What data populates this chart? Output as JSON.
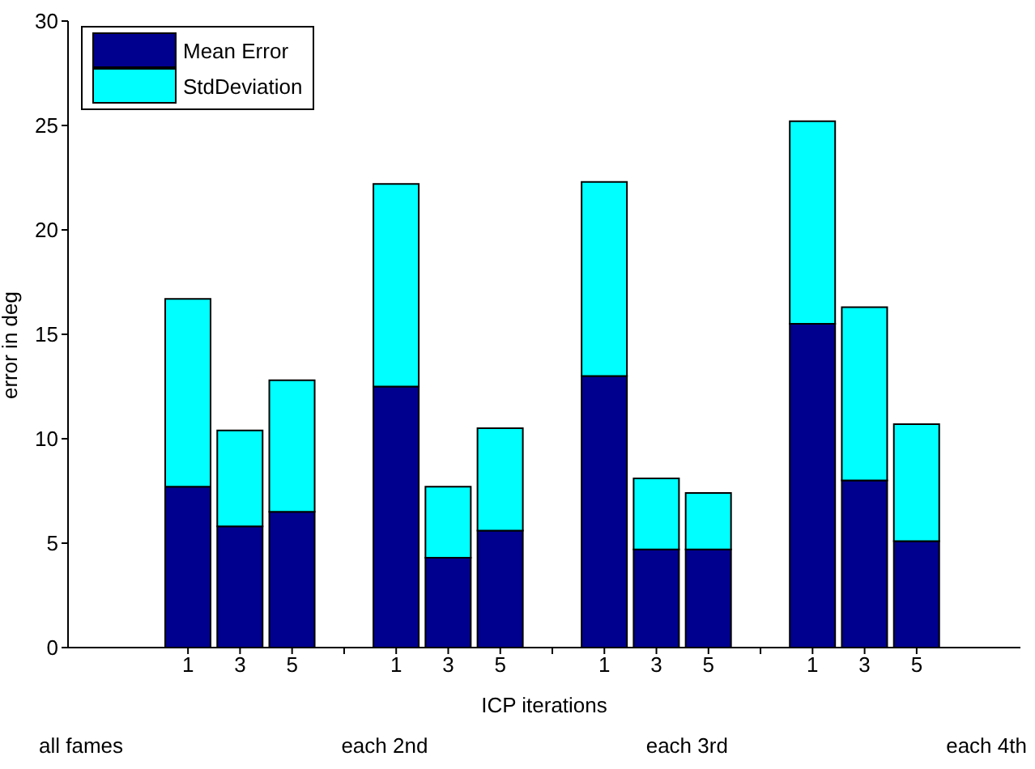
{
  "chart_data": {
    "type": "bar",
    "stacked": true,
    "xlabel": "ICP iterations",
    "ylabel": "error in deg",
    "categories": [
      "1",
      "3",
      "5",
      null,
      "1",
      "3",
      "5",
      null,
      "1",
      "3",
      "5",
      null,
      "1",
      "3",
      "5"
    ],
    "series": [
      {
        "name": "Mean Error",
        "color": "#00008f",
        "values": [
          7.7,
          5.8,
          6.5,
          null,
          12.5,
          4.3,
          5.6,
          null,
          13.0,
          4.7,
          4.7,
          null,
          15.5,
          8.0,
          5.1
        ]
      },
      {
        "name": "StdDeviation",
        "color": "#00ffff",
        "values": [
          9.0,
          4.6,
          6.3,
          null,
          9.7,
          3.4,
          4.9,
          null,
          9.3,
          3.4,
          2.7,
          null,
          9.7,
          8.3,
          5.6
        ]
      }
    ],
    "ylim": [
      0,
      30
    ],
    "yticks": [
      0,
      5,
      10,
      15,
      20,
      25,
      30
    ],
    "legend": "top left",
    "annotations": [
      "all fames",
      "each 2nd",
      "each 3rd",
      "each 4th"
    ]
  }
}
